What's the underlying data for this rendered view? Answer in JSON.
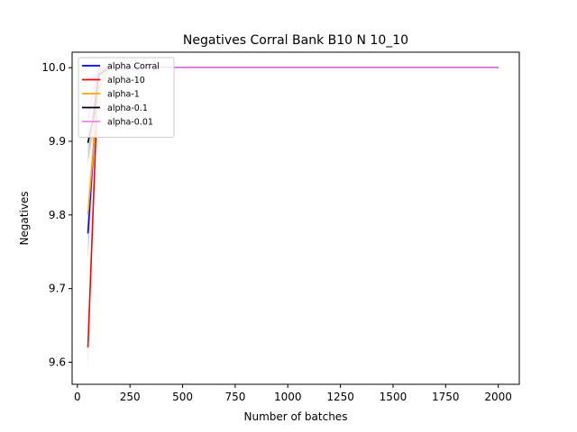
{
  "chart_data": {
    "type": "line",
    "title": "Negatives Corral Bank B10 N 10_10",
    "xlabel": "Number of batches",
    "ylabel": "Negatives",
    "xlim": [
      -25,
      2100
    ],
    "ylim": [
      9.57,
      10.021
    ],
    "xticks": [
      0,
      250,
      500,
      750,
      1000,
      1250,
      1500,
      1750,
      2000
    ],
    "xtick_labels": [
      "0",
      "250",
      "500",
      "750",
      "1000",
      "1250",
      "1500",
      "1750",
      "2000"
    ],
    "yticks": [
      9.6,
      9.7,
      9.8,
      9.9,
      10.0
    ],
    "ytick_labels": [
      "9.6",
      "9.7",
      "9.8",
      "9.9",
      "10.0"
    ],
    "grid": false,
    "legend_position": "top-left",
    "series": [
      {
        "name": "alpha Corral",
        "color": "#0000ff",
        "band_color": "#9999ff",
        "x": [
          50,
          100,
          150,
          200,
          2000
        ],
        "y": [
          9.775,
          9.99,
          10.0,
          10.0,
          10.0
        ],
        "lower": [
          9.74,
          9.97,
          10.0,
          10.0,
          10.0
        ],
        "upper": [
          9.81,
          10.0,
          10.0,
          10.0,
          10.0
        ]
      },
      {
        "name": "alpha-10",
        "color": "#ff0000",
        "band_color": "#ffaaaa",
        "x": [
          50,
          100,
          150,
          200,
          2000
        ],
        "y": [
          9.62,
          9.999,
          10.0,
          10.0,
          10.0
        ],
        "lower": [
          9.59,
          9.99,
          10.0,
          10.0,
          10.0
        ],
        "upper": [
          9.65,
          10.0,
          10.0,
          10.0,
          10.0
        ]
      },
      {
        "name": "alpha-1",
        "color": "#ffa500",
        "band_color": "#ffd9a0",
        "x": [
          50,
          100,
          150,
          200,
          2000
        ],
        "y": [
          9.8,
          9.97,
          10.0,
          10.0,
          10.0
        ],
        "lower": [
          9.77,
          9.95,
          10.0,
          10.0,
          10.0
        ],
        "upper": [
          9.83,
          9.99,
          10.0,
          10.0,
          10.0
        ]
      },
      {
        "name": "alpha-0.1",
        "color": "#000000",
        "band_color": "#aaaaaa",
        "x": [
          50,
          75,
          100,
          150,
          200,
          2000
        ],
        "y": [
          9.898,
          9.93,
          9.99,
          10.0,
          10.0,
          10.0
        ],
        "lower": [
          9.87,
          9.91,
          9.98,
          10.0,
          10.0,
          10.0
        ],
        "upper": [
          9.92,
          9.95,
          10.0,
          10.0,
          10.0,
          10.0
        ]
      },
      {
        "name": "alpha-0.01",
        "color": "#ee82ee",
        "band_color": "#f7c6f7",
        "x": [
          50,
          100,
          150,
          200,
          2000
        ],
        "y": [
          9.93,
          9.998,
          10.0,
          10.0,
          10.0
        ],
        "lower": [
          9.9,
          9.99,
          10.0,
          10.0,
          10.0
        ],
        "upper": [
          9.96,
          10.0,
          10.0,
          10.0,
          10.0
        ]
      }
    ]
  }
}
